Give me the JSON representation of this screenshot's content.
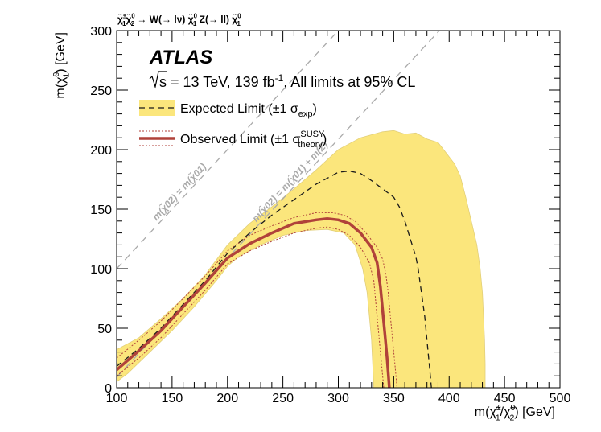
{
  "chart_data": {
    "type": "area",
    "process": "χ̃±1 χ̃02 → W(→ lν) χ̃01 Z(→ ll) χ̃01",
    "process_parts": [
      "χ̃",
      "±",
      "1",
      "χ̃",
      "0",
      "2",
      " → W(→ lν) ",
      "χ̃",
      "0",
      "1",
      " Z(→ ll) ",
      "χ̃",
      "0",
      "1"
    ],
    "experiment": "ATLAS",
    "energy_label": "s = 13 TeV, 139 fb",
    "energy_sup": "-1",
    "energy_suffix": ", All limits at 95% CL",
    "xlabel": "m(χ̃±1/χ̃02) [GeV]",
    "xlabel_parts": [
      "m(",
      "χ̃",
      "±",
      "1",
      "/",
      "χ̃",
      "0",
      "2",
      ") [GeV]"
    ],
    "ylabel": "m(χ̃01) [GeV]",
    "ylabel_parts": [
      "m(",
      "χ̃",
      "0",
      "1",
      ") [GeV]"
    ],
    "xlim": [
      100,
      500
    ],
    "ylim": [
      0,
      300
    ],
    "x_ticks": [
      100,
      150,
      200,
      250,
      300,
      350,
      400,
      450,
      500
    ],
    "y_ticks": [
      0,
      50,
      100,
      150,
      200,
      250,
      300
    ],
    "legend": {
      "position": "top-left",
      "expected": {
        "label": "Expected Limit (±1 σ",
        "sub": "exp",
        "close": ")"
      },
      "observed": {
        "label": "Observed Limit (±1 σ",
        "sup": "SUSY",
        "sub": "theory",
        "close": ")"
      }
    },
    "diagonals": [
      {
        "name": "m(χ̃02) = m(χ̃01)",
        "text": "m(χ̃02) = m(χ̃01)",
        "offset": 0
      },
      {
        "name": "m(χ̃02) = m(χ̃01) + m(Z)",
        "text": "m(χ̃02) = m(χ̃01) + m(Z)",
        "offset": 91.2
      }
    ],
    "colors": {
      "band": "#fbe67c",
      "band_edge": "#e2cf79",
      "observed": "#b0423a",
      "expected": "#1a1a1a",
      "diagonal": "#aaaaaa"
    },
    "series": {
      "expected_band_upper": [
        [
          100,
          32
        ],
        [
          120,
          42
        ],
        [
          140,
          58
        ],
        [
          160,
          75
        ],
        [
          180,
          95
        ],
        [
          200,
          120
        ],
        [
          220,
          138
        ],
        [
          240,
          152
        ],
        [
          260,
          167
        ],
        [
          280,
          183
        ],
        [
          300,
          200
        ],
        [
          320,
          210
        ],
        [
          340,
          215
        ],
        [
          350,
          216
        ],
        [
          360,
          213
        ],
        [
          370,
          214
        ],
        [
          380,
          209
        ],
        [
          390,
          206
        ],
        [
          395,
          200
        ],
        [
          405,
          188
        ],
        [
          410,
          178
        ],
        [
          415,
          160
        ],
        [
          420,
          140
        ],
        [
          425,
          120
        ],
        [
          428,
          100
        ],
        [
          430,
          80
        ],
        [
          431,
          60
        ],
        [
          432,
          40
        ],
        [
          432.5,
          20
        ],
        [
          432.5,
          0
        ]
      ],
      "expected_band_lower": [
        [
          100,
          5
        ],
        [
          110,
          12
        ],
        [
          130,
          30
        ],
        [
          150,
          48
        ],
        [
          170,
          68
        ],
        [
          190,
          90
        ],
        [
          200,
          102
        ],
        [
          210,
          110
        ],
        [
          230,
          120
        ],
        [
          250,
          128
        ],
        [
          270,
          132
        ],
        [
          290,
          133
        ],
        [
          305,
          130
        ],
        [
          315,
          120
        ],
        [
          322,
          100
        ],
        [
          326,
          80
        ],
        [
          328,
          60
        ],
        [
          330,
          40
        ],
        [
          331,
          20
        ],
        [
          332,
          0
        ]
      ],
      "expected": [
        [
          100,
          18
        ],
        [
          120,
          33
        ],
        [
          140,
          50
        ],
        [
          160,
          70
        ],
        [
          180,
          90
        ],
        [
          200,
          113
        ],
        [
          220,
          130
        ],
        [
          240,
          145
        ],
        [
          260,
          158
        ],
        [
          280,
          171
        ],
        [
          300,
          181
        ],
        [
          310,
          182
        ],
        [
          320,
          180
        ],
        [
          330,
          174
        ],
        [
          340,
          167
        ],
        [
          350,
          160
        ],
        [
          355,
          152
        ],
        [
          360,
          140
        ],
        [
          365,
          125
        ],
        [
          370,
          110
        ],
        [
          372,
          100
        ],
        [
          375,
          80
        ],
        [
          378,
          60
        ],
        [
          380,
          40
        ],
        [
          382,
          20
        ],
        [
          384,
          0
        ]
      ],
      "observed": [
        [
          100,
          15
        ],
        [
          120,
          31
        ],
        [
          140,
          48
        ],
        [
          160,
          68
        ],
        [
          180,
          88
        ],
        [
          200,
          109
        ],
        [
          220,
          121
        ],
        [
          240,
          130
        ],
        [
          260,
          138
        ],
        [
          280,
          141
        ],
        [
          290,
          142
        ],
        [
          300,
          141
        ],
        [
          310,
          138
        ],
        [
          320,
          130
        ],
        [
          330,
          118
        ],
        [
          335,
          105
        ],
        [
          338,
          85
        ],
        [
          340,
          65
        ],
        [
          342,
          45
        ],
        [
          344,
          25
        ],
        [
          346,
          0
        ]
      ],
      "observed_up": [
        [
          100,
          25
        ],
        [
          120,
          40
        ],
        [
          140,
          56
        ],
        [
          160,
          75
        ],
        [
          180,
          94
        ],
        [
          200,
          115
        ],
        [
          220,
          128
        ],
        [
          240,
          136
        ],
        [
          260,
          143
        ],
        [
          280,
          147
        ],
        [
          295,
          147
        ],
        [
          305,
          145
        ],
        [
          315,
          140
        ],
        [
          325,
          130
        ],
        [
          335,
          118
        ],
        [
          340,
          108
        ],
        [
          343,
          95
        ],
        [
          345,
          80
        ],
        [
          347,
          60
        ],
        [
          349,
          40
        ],
        [
          351,
          20
        ],
        [
          353,
          0
        ]
      ],
      "observed_down": [
        [
          100,
          10
        ],
        [
          120,
          25
        ],
        [
          140,
          42
        ],
        [
          160,
          62
        ],
        [
          180,
          82
        ],
        [
          200,
          104
        ],
        [
          220,
          115
        ],
        [
          240,
          123
        ],
        [
          260,
          130
        ],
        [
          280,
          134
        ],
        [
          290,
          135
        ],
        [
          300,
          133
        ],
        [
          310,
          128
        ],
        [
          320,
          118
        ],
        [
          328,
          105
        ],
        [
          332,
          90
        ],
        [
          334,
          70
        ],
        [
          336,
          50
        ],
        [
          338,
          30
        ],
        [
          340,
          10
        ],
        [
          341,
          0
        ]
      ]
    }
  }
}
